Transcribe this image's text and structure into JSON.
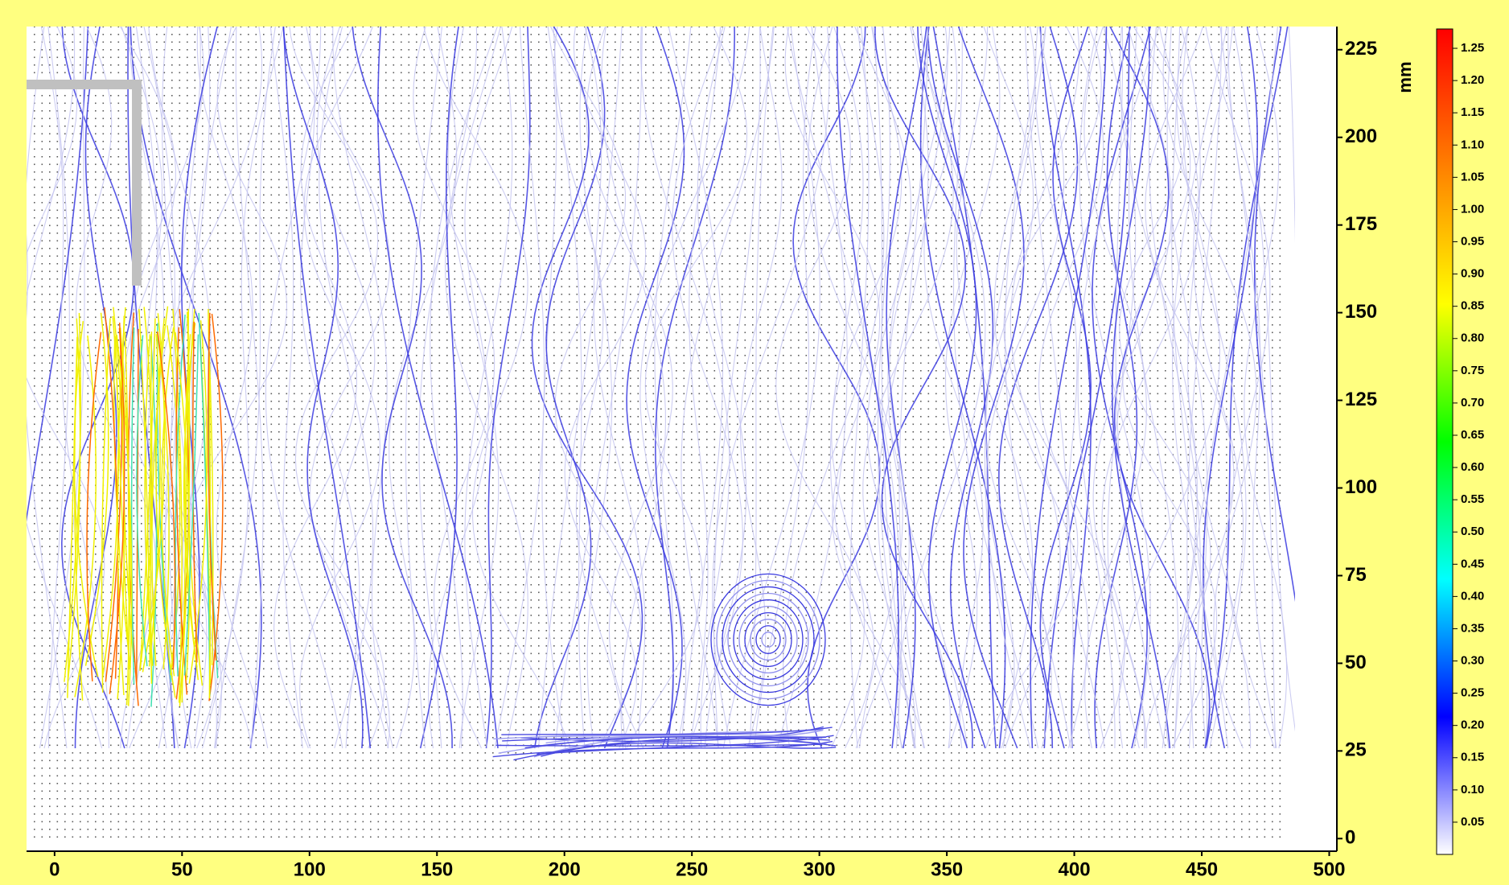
{
  "chart_data": {
    "type": "streamline",
    "xlim": [
      -11,
      503
    ],
    "ylim": [
      -3.6,
      231.6
    ],
    "xticks": [
      0,
      50,
      100,
      150,
      200,
      250,
      300,
      350,
      400,
      450,
      500
    ],
    "yticks": [
      0,
      25,
      50,
      75,
      100,
      125,
      150,
      175,
      200,
      225
    ],
    "y_label": "mm",
    "clim": [
      0,
      1.28
    ],
    "colormap": [
      "#ffffff",
      "#0000ff",
      "#00ffff",
      "#00ff00",
      "#ffff00",
      "#ff8000",
      "#ff0000"
    ],
    "cticks": [
      0.05,
      {
        "value": 0.1,
        "label": "0.10"
      },
      0.15,
      {
        "value": 0.2,
        "label": "0.20"
      },
      0.25,
      {
        "value": 0.3,
        "label": "0.30"
      },
      0.35,
      {
        "value": 0.4,
        "label": "0.40"
      },
      0.45,
      {
        "value": 0.5,
        "label": "0.50"
      },
      0.55,
      {
        "value": 0.6,
        "label": "0.60"
      },
      0.65,
      {
        "value": 0.7,
        "label": "0.70"
      },
      0.75,
      {
        "value": 0.8,
        "label": "0.80"
      },
      0.85,
      {
        "value": 0.9,
        "label": "0.90"
      },
      0.95,
      {
        "value": 1,
        "label": "1.00"
      },
      1.05,
      {
        "value": 1.1,
        "label": "1.10"
      },
      1.15,
      {
        "value": 1.2,
        "label": "1.20"
      },
      1.25
    ]
  }
}
